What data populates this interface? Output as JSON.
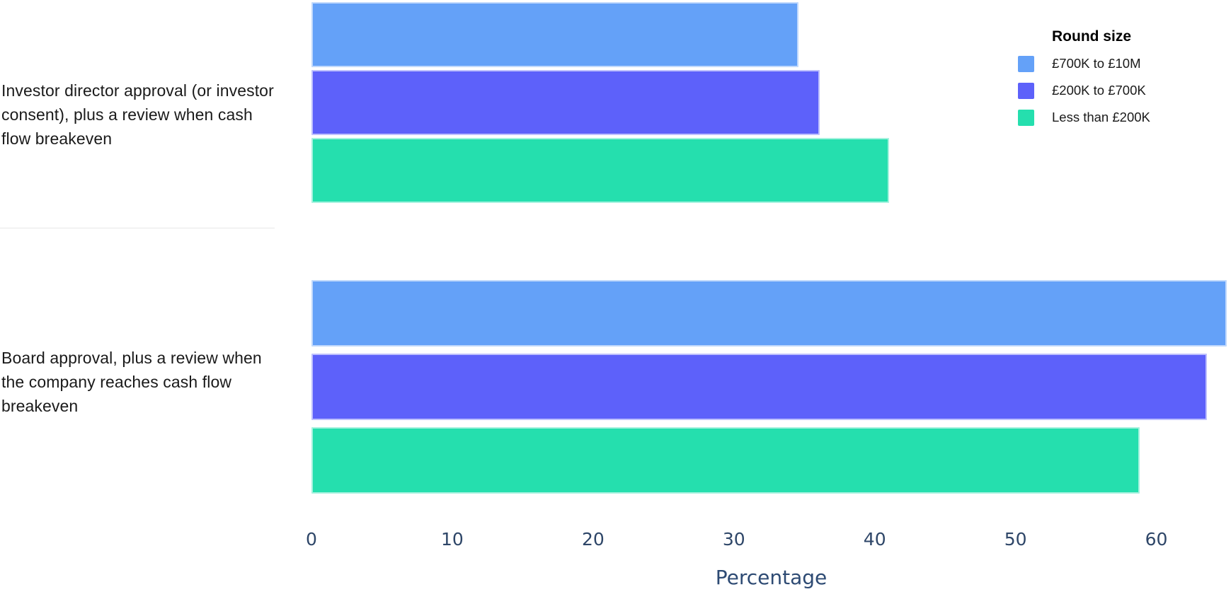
{
  "chart": {
    "legend_title": "Round size",
    "xlabel": "Percentage"
  },
  "chart_data": {
    "type": "bar",
    "orientation": "horizontal",
    "title": "",
    "xlabel": "Percentage",
    "ylabel": "",
    "categories": [
      "Investor director approval (or investor consent), plus a review when cash flow breakeven",
      "Board approval, plus a review when the company reaches cash flow breakeven"
    ],
    "series": [
      {
        "name": "£700K to £10M",
        "color": "#64a1f8",
        "values": [
          34.6,
          65.0
        ]
      },
      {
        "name": "£200K to £700K",
        "color": "#5d61fa",
        "values": [
          36.1,
          63.6
        ]
      },
      {
        "name": "Less than £200K",
        "color": "#25dfae",
        "values": [
          41.0,
          58.8
        ]
      }
    ],
    "x_ticks": [
      0,
      10,
      20,
      30,
      40,
      50,
      60
    ],
    "xlim": [
      0,
      65.3
    ],
    "grid": false,
    "legend": {
      "title": "Round size",
      "position": "top-right"
    },
    "colors": {
      "axis_text": "#2e4668",
      "axis_title_text": "#2d4a73",
      "category_text": "#1a1a1a",
      "divider": "#e7e7e7",
      "background": "#ffffff"
    }
  }
}
